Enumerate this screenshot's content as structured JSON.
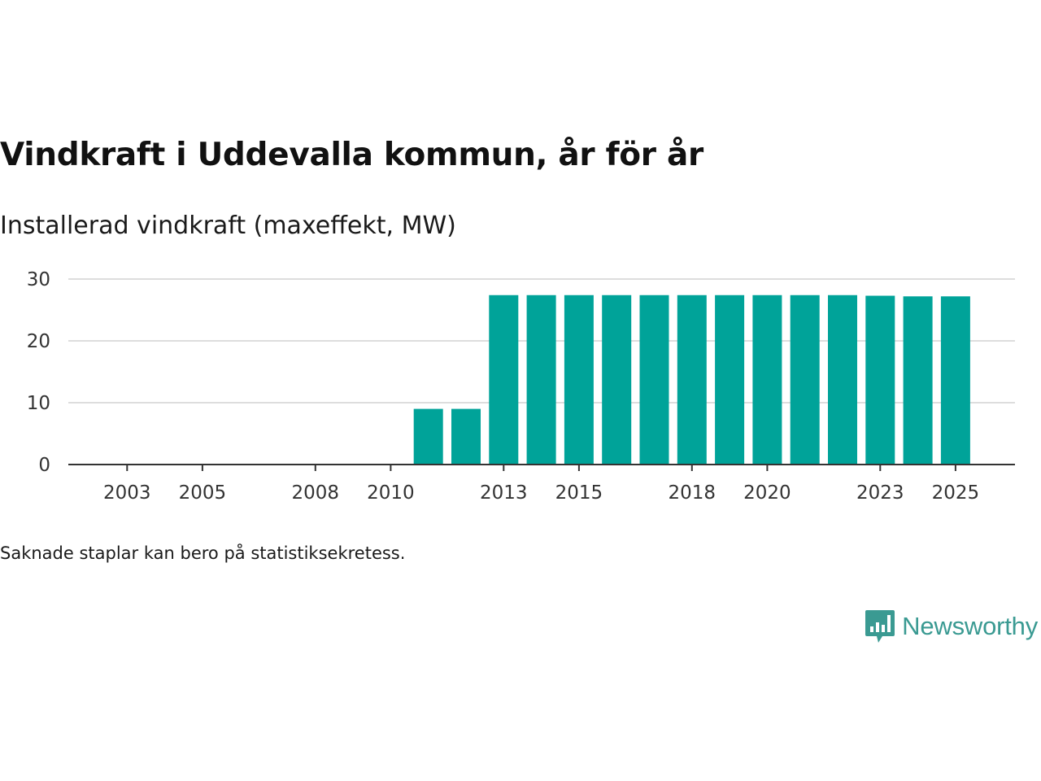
{
  "title": "Vindkraft i Uddevalla kommun, år för år",
  "subtitle": "Installerad vindkraft (maxeffekt, MW)",
  "note": "Saknade staplar kan bero på statistiksekretess.",
  "logo": {
    "text": "Newsworthy",
    "icon": "newsworthy-chart-icon"
  },
  "colors": {
    "bar": "#00a399",
    "grid": "#dddddd",
    "axis": "#333333",
    "logo": "#3a9a92"
  },
  "chart_data": {
    "type": "bar",
    "title": "Vindkraft i Uddevalla kommun, år för år",
    "ylabel": "Installerad vindkraft (maxeffekt, MW)",
    "xlabel": "",
    "categories": [
      2002,
      2003,
      2004,
      2005,
      2006,
      2007,
      2008,
      2009,
      2010,
      2011,
      2012,
      2013,
      2014,
      2015,
      2016,
      2017,
      2018,
      2019,
      2020,
      2021,
      2022,
      2023,
      2024,
      2025
    ],
    "values": [
      0,
      0,
      0,
      0,
      0,
      0,
      0,
      0,
      0,
      9,
      9,
      27.4,
      27.4,
      27.4,
      27.4,
      27.4,
      27.4,
      27.4,
      27.4,
      27.4,
      27.4,
      27.3,
      27.2,
      27.2
    ],
    "xticks": [
      "2003",
      "2005",
      "2008",
      "2010",
      "2013",
      "2015",
      "2018",
      "2020",
      "2023",
      "2025"
    ],
    "yticks": [
      0,
      10,
      20,
      30
    ],
    "ylim": [
      0,
      30
    ],
    "grid": true
  }
}
